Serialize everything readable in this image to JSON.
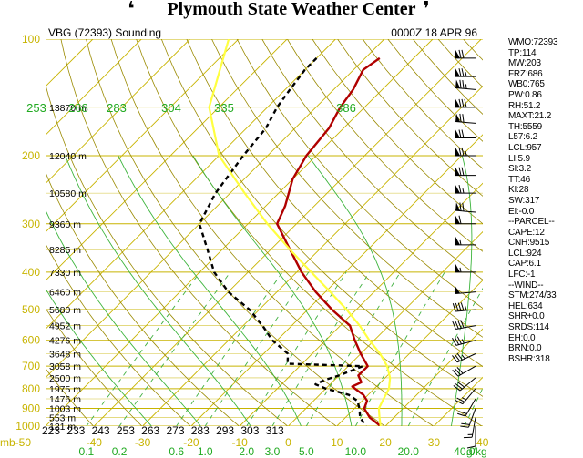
{
  "header": {
    "title": "Plymouth State Weather Center",
    "left_swirl": "❛",
    "right_swirl": "❜"
  },
  "chart_data": {
    "type": "line",
    "station_label": "VBG (72393) Sounding",
    "time_label": "0000Z 18 APR 96",
    "pressure_axis_mb": [
      100,
      200,
      300,
      400,
      500,
      600,
      700,
      800,
      900,
      1000
    ],
    "pressure_tick_labels": [
      "100",
      "200",
      "300",
      "400",
      "500",
      "600",
      "700",
      "800",
      "900",
      "1000"
    ],
    "pressure_range_mb": [
      100,
      1000
    ],
    "temperature_range_c": [
      -50,
      40
    ],
    "temperature_tick_labels": [
      "mb-50",
      "-40",
      "-30",
      "-20",
      "-10",
      "0",
      "10",
      "20",
      "30",
      "40"
    ],
    "temperature_ticks_c": [
      -50,
      -40,
      -30,
      -20,
      -10,
      0,
      10,
      20,
      30,
      40
    ],
    "mixing_ratio_labels": [
      "0.1",
      "0.2",
      "0.6",
      "1.0",
      "2.0",
      "3.0",
      "5.0",
      "10.0",
      "20.0",
      "40.0",
      "g/kg"
    ],
    "theta_labels_bottom": [
      "223",
      "233",
      "243",
      "253",
      "263",
      "273",
      "283",
      "293",
      "303",
      "313"
    ],
    "theta_e_labels": [
      "253",
      "268",
      "283",
      "304",
      "335",
      "386"
    ],
    "height_labels": [
      {
        "p": 150,
        "label": "13870 m"
      },
      {
        "p": 200,
        "label": "12040 m"
      },
      {
        "p": 250,
        "label": "10580 m"
      },
      {
        "p": 300,
        "label": "9360 m"
      },
      {
        "p": 350,
        "label": "8285 m"
      },
      {
        "p": 400,
        "label": "7330 m"
      },
      {
        "p": 450,
        "label": "6460 m"
      },
      {
        "p": 500,
        "label": "5680 m"
      },
      {
        "p": 550,
        "label": "4952 m"
      },
      {
        "p": 600,
        "label": "4276 m"
      },
      {
        "p": 650,
        "label": "3648 m"
      },
      {
        "p": 700,
        "label": "3058 m"
      },
      {
        "p": 750,
        "label": "2500 m"
      },
      {
        "p": 800,
        "label": "1975 m"
      },
      {
        "p": 850,
        "label": "1476 m"
      },
      {
        "p": 900,
        "label": "1003 m"
      },
      {
        "p": 950,
        "label": "553 m"
      },
      {
        "p": 1000,
        "label": "121 m"
      }
    ],
    "series": [
      {
        "name": "Temperature",
        "color": "#b00000",
        "style": "solid",
        "points": [
          {
            "p": 112,
            "t": -57
          },
          {
            "p": 120,
            "t": -58
          },
          {
            "p": 135,
            "t": -56
          },
          {
            "p": 150,
            "t": -55
          },
          {
            "p": 170,
            "t": -53
          },
          {
            "p": 200,
            "t": -52
          },
          {
            "p": 230,
            "t": -50
          },
          {
            "p": 270,
            "t": -46
          },
          {
            "p": 300,
            "t": -44
          },
          {
            "p": 350,
            "t": -36
          },
          {
            "p": 400,
            "t": -29
          },
          {
            "p": 450,
            "t": -22
          },
          {
            "p": 500,
            "t": -15
          },
          {
            "p": 550,
            "t": -8
          },
          {
            "p": 600,
            "t": -4
          },
          {
            "p": 650,
            "t": 0
          },
          {
            "p": 700,
            "t": 4
          },
          {
            "p": 740,
            "t": 4
          },
          {
            "p": 770,
            "t": 6
          },
          {
            "p": 790,
            "t": 5
          },
          {
            "p": 800,
            "t": 6
          },
          {
            "p": 830,
            "t": 9
          },
          {
            "p": 860,
            "t": 11
          },
          {
            "p": 900,
            "t": 12
          },
          {
            "p": 950,
            "t": 15
          },
          {
            "p": 1000,
            "t": 19
          }
        ]
      },
      {
        "name": "Dewpoint",
        "color": "#000000",
        "style": "dashed",
        "points": [
          {
            "p": 112,
            "t": -70
          },
          {
            "p": 120,
            "t": -70
          },
          {
            "p": 135,
            "t": -69
          },
          {
            "p": 150,
            "t": -68
          },
          {
            "p": 170,
            "t": -66
          },
          {
            "p": 200,
            "t": -65
          },
          {
            "p": 250,
            "t": -63
          },
          {
            "p": 300,
            "t": -60
          },
          {
            "p": 350,
            "t": -53
          },
          {
            "p": 400,
            "t": -47
          },
          {
            "p": 450,
            "t": -40
          },
          {
            "p": 500,
            "t": -32
          },
          {
            "p": 550,
            "t": -26
          },
          {
            "p": 600,
            "t": -21
          },
          {
            "p": 650,
            "t": -15
          },
          {
            "p": 690,
            "t": -13
          },
          {
            "p": 700,
            "t": 3
          },
          {
            "p": 740,
            "t": 0
          },
          {
            "p": 760,
            "t": -2
          },
          {
            "p": 780,
            "t": -3
          },
          {
            "p": 800,
            "t": 0
          },
          {
            "p": 830,
            "t": 6
          },
          {
            "p": 860,
            "t": 9
          },
          {
            "p": 900,
            "t": 11
          },
          {
            "p": 950,
            "t": 13
          },
          {
            "p": 1000,
            "t": 16
          }
        ]
      },
      {
        "name": "Parcel",
        "color": "#ffff40",
        "style": "solid",
        "points": [
          {
            "p": 100,
            "t": -92
          },
          {
            "p": 150,
            "t": -82
          },
          {
            "p": 200,
            "t": -70
          },
          {
            "p": 250,
            "t": -57
          },
          {
            "p": 300,
            "t": -46
          },
          {
            "p": 350,
            "t": -36
          },
          {
            "p": 400,
            "t": -27
          },
          {
            "p": 450,
            "t": -19
          },
          {
            "p": 500,
            "t": -12
          },
          {
            "p": 550,
            "t": -6
          },
          {
            "p": 600,
            "t": -1
          },
          {
            "p": 650,
            "t": 4
          },
          {
            "p": 700,
            "t": 8
          },
          {
            "p": 750,
            "t": 11
          },
          {
            "p": 800,
            "t": 13
          },
          {
            "p": 850,
            "t": 14
          },
          {
            "p": 900,
            "t": 15
          },
          {
            "p": 950,
            "t": 17
          },
          {
            "p": 1000,
            "t": 19
          }
        ]
      }
    ],
    "wind_barbs": [
      {
        "p": 112,
        "dir": 270,
        "spd": 70
      },
      {
        "p": 125,
        "dir": 270,
        "spd": 75
      },
      {
        "p": 135,
        "dir": 275,
        "spd": 75
      },
      {
        "p": 150,
        "dir": 270,
        "spd": 80
      },
      {
        "p": 165,
        "dir": 275,
        "spd": 70
      },
      {
        "p": 180,
        "dir": 270,
        "spd": 70
      },
      {
        "p": 200,
        "dir": 270,
        "spd": 75
      },
      {
        "p": 225,
        "dir": 270,
        "spd": 70
      },
      {
        "p": 250,
        "dir": 270,
        "spd": 65
      },
      {
        "p": 280,
        "dir": 275,
        "spd": 70
      },
      {
        "p": 300,
        "dir": 270,
        "spd": 60
      },
      {
        "p": 340,
        "dir": 270,
        "spd": 55
      },
      {
        "p": 400,
        "dir": 270,
        "spd": 55
      },
      {
        "p": 450,
        "dir": 265,
        "spd": 50
      },
      {
        "p": 500,
        "dir": 265,
        "spd": 45
      },
      {
        "p": 550,
        "dir": 260,
        "spd": 40
      },
      {
        "p": 600,
        "dir": 255,
        "spd": 35
      },
      {
        "p": 650,
        "dir": 245,
        "spd": 35
      },
      {
        "p": 700,
        "dir": 240,
        "spd": 30
      },
      {
        "p": 750,
        "dir": 230,
        "spd": 30
      },
      {
        "p": 800,
        "dir": 220,
        "spd": 25
      },
      {
        "p": 850,
        "dir": 210,
        "spd": 20
      },
      {
        "p": 900,
        "dir": 200,
        "spd": 20
      },
      {
        "p": 950,
        "dir": 190,
        "spd": 15
      },
      {
        "p": 1000,
        "dir": 180,
        "spd": 10
      }
    ],
    "colors": {
      "isobar": "#c8b400",
      "isotherm": "#c8b400",
      "dry_adiabat": "#9a8a00",
      "moist_adiabat": "#3cb43c",
      "mixing_ratio": "#40b040",
      "axis_text": "#c8b400",
      "theta_e_text": "#22aa22"
    }
  },
  "indices": [
    "WMO:72393",
    "TP:114",
    "MW:203",
    "FRZ:686",
    "WB0:765",
    "PW:0.86",
    "RH:51.2",
    "MAXT:21.2",
    "TH:5559",
    "L57:6.2",
    "LCL:957",
    "LI:5.9",
    "SI:3.2",
    "TT:46",
    "KI:28",
    "SW:317",
    "EI:-0.0",
    "--PARCEL--",
    "CAPE:12",
    "CNH:9515",
    "LCL:924",
    "CAP:6.1",
    "LFC:-1",
    "--WIND--",
    "STM:274/33",
    "HEL:634",
    "SHR+0.0",
    "SRDS:114",
    "EH:0.0",
    "BRN:0.0",
    "BSHR:318"
  ]
}
